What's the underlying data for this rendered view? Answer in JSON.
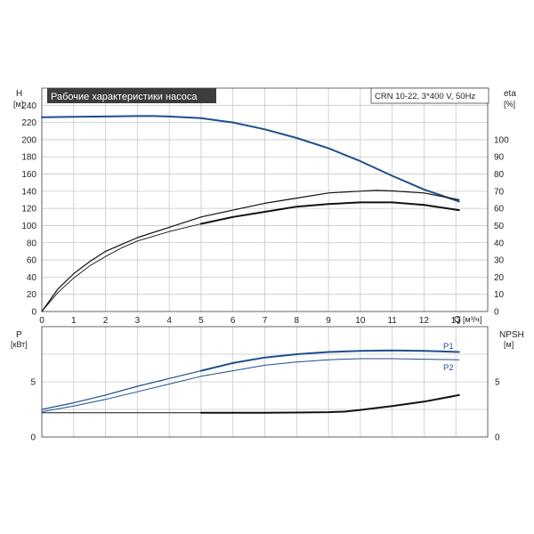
{
  "chart_data": [
    {
      "type": "line",
      "title": "Рабочие характеристики насоса",
      "model_label": "CRN 10-22, 3*400 V, 50Hz",
      "xlabel": "Q",
      "xunit": "[м³/ч]",
      "xlim": [
        0,
        14
      ],
      "xticks": [
        "0",
        "1",
        "2",
        "3",
        "4",
        "5",
        "6",
        "7",
        "8",
        "9",
        "10",
        "11",
        "12",
        "13"
      ],
      "left_axis": {
        "label": "H",
        "unit": "[м]",
        "ylim": [
          0,
          260
        ],
        "ticks": [
          "0",
          "20",
          "40",
          "60",
          "80",
          "100",
          "120",
          "140",
          "160",
          "180",
          "200",
          "220",
          "240"
        ]
      },
      "right_axis": {
        "label": "eta",
        "unit": "[%]",
        "ylim": [
          0,
          130
        ],
        "ticks": [
          "0",
          "10",
          "20",
          "30",
          "40",
          "50",
          "60",
          "70",
          "80",
          "90",
          "100"
        ]
      },
      "grid": true,
      "series": [
        {
          "axis": "left",
          "color": "#1f4e8c",
          "width": 2.0,
          "x": [
            0,
            1,
            2,
            3,
            3.5,
            4,
            5,
            6,
            7,
            8,
            9,
            10,
            11,
            12,
            13.1
          ],
          "y": [
            226,
            226.5,
            227,
            227.5,
            227.5,
            227,
            225,
            220,
            212,
            202,
            190,
            175,
            158,
            142,
            128
          ]
        },
        {
          "axis": "right",
          "color": "#111111",
          "width": 1.2,
          "x": [
            0,
            0.5,
            1,
            1.5,
            2,
            2.5,
            3,
            4,
            5,
            6,
            7,
            8,
            9,
            10,
            10.5,
            11,
            12,
            13.1
          ],
          "y": [
            0,
            13,
            22,
            29,
            35,
            39,
            43,
            49,
            55,
            59,
            63,
            66,
            69,
            70,
            70.5,
            70.2,
            69,
            65
          ]
        },
        {
          "axis": "right",
          "color": "#111111",
          "width": 0.9,
          "x": [
            0,
            0.5,
            1,
            1.5,
            2,
            2.5,
            3,
            4,
            5
          ],
          "y": [
            0,
            11,
            19.5,
            26.5,
            32,
            37,
            41,
            46.5,
            51
          ]
        },
        {
          "axis": "right",
          "color": "#111111",
          "width": 2.0,
          "x": [
            5,
            6,
            7,
            8,
            9,
            10,
            11,
            12,
            13.1
          ],
          "y": [
            51,
            55,
            58,
            61,
            62.5,
            63.5,
            63.5,
            62,
            59
          ]
        }
      ]
    },
    {
      "type": "line",
      "xlim": [
        0,
        14
      ],
      "left_axis": {
        "label": "P",
        "unit": "[кВт]",
        "ylim": [
          0,
          10
        ],
        "ticks": [
          "0",
          "5"
        ]
      },
      "right_axis": {
        "label": "NPSH",
        "unit": "[м]",
        "ylim": [
          0,
          10
        ],
        "ticks": [
          "0",
          "5"
        ]
      },
      "grid": true,
      "series": [
        {
          "name": "P1",
          "axis": "left",
          "color": "#1f4e8c",
          "width": 1.2,
          "x": [
            0,
            1,
            2,
            3,
            4,
            5
          ],
          "y": [
            2.5,
            3.1,
            3.8,
            4.6,
            5.3,
            6.0
          ]
        },
        {
          "name": "P1",
          "axis": "left",
          "color": "#1f4e8c",
          "width": 2.0,
          "x": [
            5,
            6,
            7,
            8,
            9,
            10,
            11,
            12,
            13.1
          ],
          "y": [
            6.0,
            6.7,
            7.2,
            7.5,
            7.7,
            7.8,
            7.85,
            7.8,
            7.7
          ]
        },
        {
          "name": "P2",
          "axis": "left",
          "color": "#1f4e8c",
          "width": 1.0,
          "x": [
            0,
            1,
            2,
            3,
            4,
            5,
            6,
            7,
            8,
            9,
            10,
            11,
            12,
            13.1
          ],
          "y": [
            2.3,
            2.8,
            3.4,
            4.1,
            4.8,
            5.5,
            6.0,
            6.5,
            6.8,
            7.0,
            7.1,
            7.1,
            7.05,
            7.0
          ]
        },
        {
          "axis": "right",
          "color": "#111111",
          "width": 1.0,
          "x": [
            0,
            1,
            2,
            3,
            4,
            5
          ],
          "y": [
            2.2,
            2.2,
            2.2,
            2.2,
            2.2,
            2.2
          ]
        },
        {
          "axis": "right",
          "color": "#111111",
          "width": 2.0,
          "x": [
            5,
            6,
            7,
            8,
            9,
            9.5,
            10,
            11,
            12,
            13.1
          ],
          "y": [
            2.2,
            2.2,
            2.2,
            2.22,
            2.25,
            2.3,
            2.45,
            2.8,
            3.2,
            3.8
          ]
        }
      ],
      "labels": [
        "P1",
        "P2"
      ]
    }
  ]
}
